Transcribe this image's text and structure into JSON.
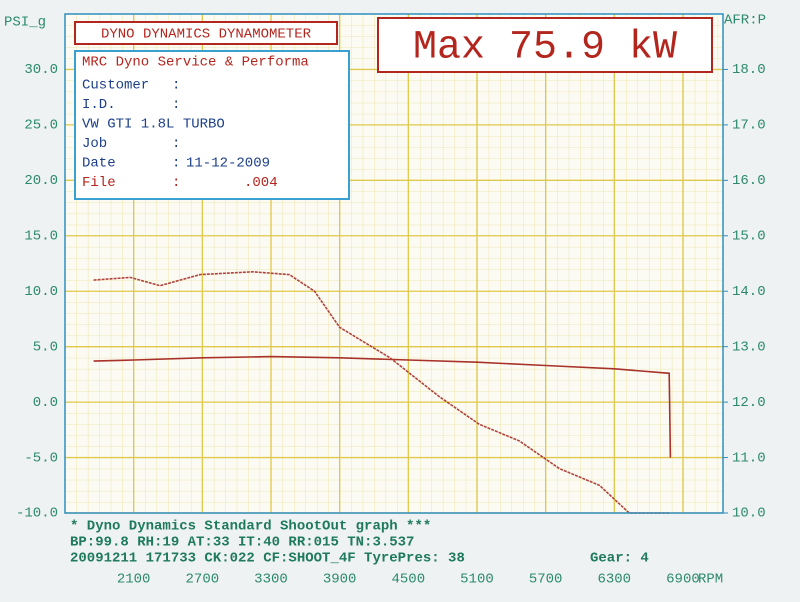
{
  "chart_data": {
    "type": "line",
    "banner": "DYNO DYNAMICS DYNAMOMETER",
    "max_label": "Max 75.9 kW",
    "info": {
      "heading": "MRC Dyno Service & Performa",
      "rows": [
        [
          "Customer",
          ":"
        ],
        [
          "I.D.",
          ":"
        ],
        [
          "VW GTI 1.8L TURBO"
        ],
        [
          "Job",
          ":"
        ],
        [
          "Date",
          ":",
          "11-12-2009"
        ],
        [
          "File",
          ":",
          ".004"
        ]
      ]
    },
    "footer": [
      "* Dyno Dynamics Standard ShootOut graph ***",
      "BP:99.8  RH:19 AT:33  IT:40  RR:015 TN:3.537",
      "20091211 171733 CK:022 CF:SHOOT_4F TyrePres: 38",
      "Gear: 4"
    ],
    "ylabel": "PSI_g",
    "y2label": "AFR:P",
    "xlabel": "RPM",
    "xlim": [
      1500,
      7250
    ],
    "xticks": [
      2100,
      2700,
      3300,
      3900,
      4500,
      5100,
      5700,
      6300,
      6900
    ],
    "ylim": [
      -10,
      35
    ],
    "yticks": [
      {
        "value": -10,
        "label": "-10.0"
      },
      {
        "value": -5,
        "label": "-5.0"
      },
      {
        "value": 0,
        "label": "0.0"
      },
      {
        "value": 5,
        "label": "5.0"
      },
      {
        "value": 10,
        "label": "10.0"
      },
      {
        "value": 15,
        "label": "15.0"
      },
      {
        "value": 20,
        "label": "20.0"
      },
      {
        "value": 25,
        "label": "25.0"
      },
      {
        "value": 30,
        "label": "30.0"
      }
    ],
    "y2lim": [
      10,
      19
    ],
    "y2ticks": [
      {
        "value": 10,
        "label": "10.0"
      },
      {
        "value": 11,
        "label": "11.0"
      },
      {
        "value": 12,
        "label": "12.0"
      },
      {
        "value": 13,
        "label": "13.0"
      },
      {
        "value": 14,
        "label": "14.0"
      },
      {
        "value": 15,
        "label": "15.0"
      },
      {
        "value": 16,
        "label": "16.0"
      },
      {
        "value": 17,
        "label": "17.0"
      },
      {
        "value": 18,
        "label": "18.0"
      }
    ],
    "grid": true,
    "series": [
      {
        "color": "#a8322a",
        "x": [
          1750,
          2100,
          2700,
          3300,
          3900,
          4500,
          5100,
          5700,
          6300,
          6780,
          6790
        ],
        "values": [
          3.7,
          3.8,
          4.0,
          4.1,
          4.0,
          3.8,
          3.6,
          3.3,
          3.0,
          2.6,
          -5.0
        ]
      },
      {
        "color": "#b0443a",
        "axis": "y2",
        "dashed": true,
        "x": [
          1750,
          2070,
          2330,
          2680,
          3140,
          3460,
          3680,
          3900,
          4340,
          4770,
          5120,
          5470,
          5820,
          6170,
          6430,
          6780
        ],
        "values": [
          14.2,
          14.25,
          14.1,
          14.3,
          14.35,
          14.3,
          14.0,
          13.35,
          12.8,
          12.1,
          11.6,
          11.3,
          10.8,
          10.5,
          10.0,
          10.0
        ]
      }
    ]
  }
}
